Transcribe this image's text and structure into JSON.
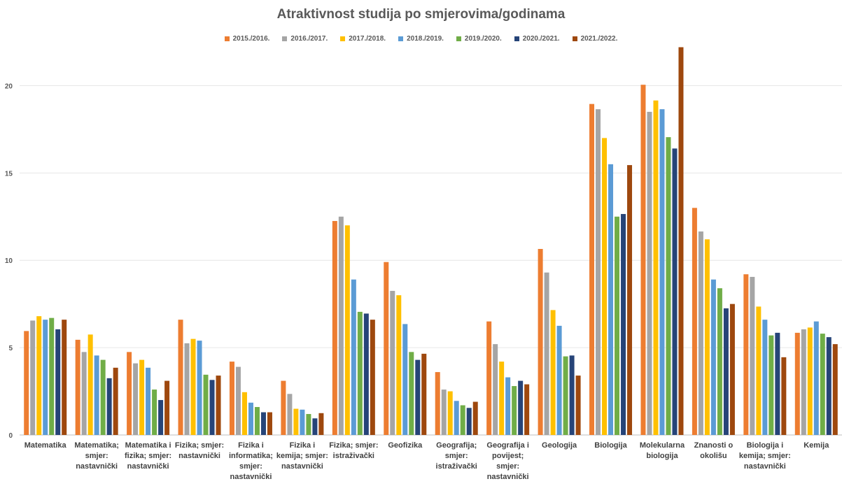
{
  "chart_data": {
    "type": "bar",
    "title": "Atraktivnost studija po smjerovima/godinama",
    "xlabel": "",
    "ylabel": "",
    "ylim": [
      0,
      22.5
    ],
    "yticks": [
      "0",
      "5",
      "10",
      "15",
      "20"
    ],
    "grid": true,
    "legend_position": "top",
    "categories": [
      "Matematika",
      "Matematika; smjer: nastavnički",
      "Matematika i fizika; smjer: nastavnički",
      "Fizika; smjer: nastavnički",
      "Fizika i informatika; smjer: nastavnički",
      "Fizika i kemija; smjer: nastavnički",
      "Fizika; smjer: istraživački",
      "Geofizika",
      "Geografija; smjer: istraživački",
      "Geografija i povijest; smjer: nastavnički",
      "Geologija",
      "Biologija",
      "Molekularna biologija",
      "Znanosti o okolišu",
      "Biologija i kemija; smjer: nastavnički",
      "Kemija"
    ],
    "category_lines": [
      [
        "Matematika"
      ],
      [
        "Matematika;",
        "smjer:",
        "nastavnički"
      ],
      [
        "Matematika i",
        "fizika; smjer:",
        "nastavnički"
      ],
      [
        "Fizika; smjer:",
        "nastavnički"
      ],
      [
        "Fizika i",
        "informatika;",
        "smjer:",
        "nastavnički"
      ],
      [
        "Fizika i",
        "kemija; smjer:",
        "nastavnički"
      ],
      [
        "Fizika; smjer:",
        "istraživački"
      ],
      [
        "Geofizika"
      ],
      [
        "Geografija;",
        "smjer:",
        "istraživački"
      ],
      [
        "Geografija i",
        "povijest;",
        "smjer:",
        "nastavnički"
      ],
      [
        "Geologija"
      ],
      [
        "Biologija"
      ],
      [
        "Molekularna",
        "biologija"
      ],
      [
        "Znanosti o",
        "okolišu"
      ],
      [
        "Biologija i",
        "kemija; smjer:",
        "nastavnički"
      ],
      [
        "Kemija"
      ]
    ],
    "series": [
      {
        "name": "2015./2016.",
        "color": "#ED7D31",
        "values": [
          5.95,
          5.45,
          4.75,
          6.6,
          4.2,
          3.1,
          12.25,
          9.9,
          3.6,
          6.5,
          10.65,
          18.95,
          20.05,
          13.0,
          9.2,
          5.85
        ]
      },
      {
        "name": "2016./2017.",
        "color": "#A5A5A5",
        "values": [
          6.55,
          4.75,
          4.1,
          5.25,
          3.9,
          2.35,
          12.5,
          8.25,
          2.6,
          5.2,
          9.3,
          18.65,
          18.5,
          11.65,
          9.05,
          6.05
        ]
      },
      {
        "name": "2017./2018.",
        "color": "#FFC000",
        "values": [
          6.8,
          5.75,
          4.3,
          5.5,
          2.45,
          1.5,
          12.0,
          8.0,
          2.5,
          4.2,
          7.15,
          17.0,
          19.15,
          11.2,
          7.35,
          6.15
        ]
      },
      {
        "name": "2018./2019.",
        "color": "#5B9BD5",
        "values": [
          6.6,
          4.55,
          3.85,
          5.4,
          1.85,
          1.45,
          8.9,
          6.35,
          1.95,
          3.3,
          6.25,
          15.5,
          18.65,
          8.9,
          6.6,
          6.5
        ]
      },
      {
        "name": "2019./2020.",
        "color": "#70AD47",
        "values": [
          6.7,
          4.3,
          2.6,
          3.45,
          1.6,
          1.2,
          7.05,
          4.75,
          1.7,
          2.8,
          4.5,
          12.5,
          17.05,
          8.4,
          5.7,
          5.8
        ]
      },
      {
        "name": "2020./2021.",
        "color": "#264478",
        "values": [
          6.05,
          3.25,
          2.0,
          3.15,
          1.3,
          0.95,
          6.95,
          4.3,
          1.55,
          3.1,
          4.55,
          12.65,
          16.4,
          7.25,
          5.85,
          5.6
        ]
      },
      {
        "name": "2021./2022.",
        "color": "#9E480E",
        "values": [
          6.6,
          3.85,
          3.1,
          3.4,
          1.3,
          1.25,
          6.6,
          4.65,
          1.9,
          2.9,
          3.4,
          15.45,
          22.2,
          7.5,
          4.45,
          5.2
        ]
      }
    ]
  }
}
